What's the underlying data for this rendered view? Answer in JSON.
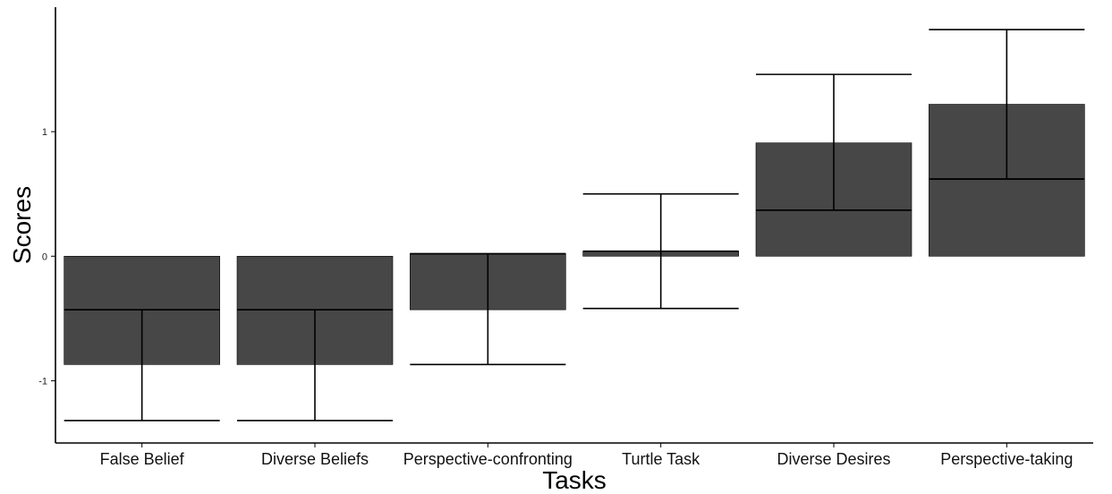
{
  "chart_data": {
    "type": "bar",
    "title": "",
    "xlabel": "Tasks",
    "ylabel": "Scores",
    "ylim": [
      -1.5,
      2.0
    ],
    "yticks": [
      -1,
      0,
      1
    ],
    "ytick_labels": [
      "-1",
      "0",
      "1"
    ],
    "grid": false,
    "legend": "none",
    "bar_color": "#474747",
    "categories": [
      "False Belief",
      "Diverse Beliefs",
      "Perspective-confronting",
      "Turtle Task",
      "Diverse Desires",
      "Perspective-taking"
    ],
    "bars": [
      {
        "lower": -0.87,
        "upper": 0
      },
      {
        "lower": -0.87,
        "upper": 0
      },
      {
        "lower": -0.43,
        "upper": 0.02
      },
      {
        "lower": 0,
        "upper": 0.04
      },
      {
        "lower": 0,
        "upper": 0.91
      },
      {
        "lower": 0,
        "upper": 1.22
      }
    ],
    "means": [
      -0.43,
      -0.43,
      0.02,
      0.04,
      0.37,
      0.62
    ],
    "error_low": [
      -1.32,
      -1.32,
      -0.87,
      -0.42,
      0.37,
      0.62
    ],
    "error_high": [
      -0.43,
      -0.43,
      0.02,
      0.5,
      1.46,
      1.82
    ]
  }
}
